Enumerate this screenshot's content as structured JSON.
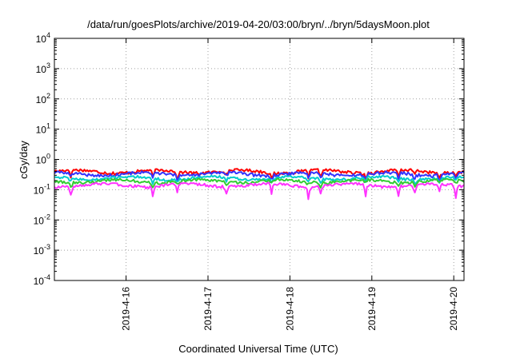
{
  "chart_data": {
    "type": "line",
    "title": "/data/run/goesPlots/archive/2019-04-20/03:00/bryn/../bryn/5daysMoon.plot",
    "xlabel": "Coordinated Universal Time (UTC)",
    "ylabel": "cGy/day",
    "y_scale": "log",
    "ylim": [
      0.0001,
      10000
    ],
    "y_ticks": [
      {
        "base": "10",
        "exp": "-4",
        "value": 0.0001
      },
      {
        "base": "10",
        "exp": "-3",
        "value": 0.001
      },
      {
        "base": "10",
        "exp": "-2",
        "value": 0.01
      },
      {
        "base": "10",
        "exp": "-1",
        "value": 0.1
      },
      {
        "base": "10",
        "exp": "0",
        "value": 1
      },
      {
        "base": "10",
        "exp": "1",
        "value": 10
      },
      {
        "base": "10",
        "exp": "2",
        "value": 100
      },
      {
        "base": "10",
        "exp": "3",
        "value": 1000
      },
      {
        "base": "10",
        "exp": "4",
        "value": 10000
      }
    ],
    "xlim": [
      "2019-04-15T03:00",
      "2019-04-20T03:00"
    ],
    "x_ticks": [
      {
        "label": "2019-4-16",
        "value": "2019-04-16T00:00"
      },
      {
        "label": "2019-4-17",
        "value": "2019-04-17T00:00"
      },
      {
        "label": "2019-4-18",
        "value": "2019-04-18T00:00"
      },
      {
        "label": "2019-4-19",
        "value": "2019-04-19T00:00"
      },
      {
        "label": "2019-4-20",
        "value": "2019-04-20T00:00"
      }
    ],
    "grid": true,
    "legend": "none",
    "series": [
      {
        "color": "#ff0000",
        "y_base": 0.4,
        "spread": 0.09,
        "dip": 0.3
      },
      {
        "color": "#3333ff",
        "y_base": 0.33,
        "spread": 0.08,
        "dip": 0.32
      },
      {
        "color": "#00cccc",
        "y_base": 0.24,
        "spread": 0.05,
        "dip": 0.25
      },
      {
        "color": "#33cc33",
        "y_base": 0.19,
        "spread": 0.04,
        "dip": 0.22
      },
      {
        "color": "#ff33ff",
        "y_base": 0.14,
        "spread": 0.03,
        "dip": 0.45
      }
    ]
  }
}
